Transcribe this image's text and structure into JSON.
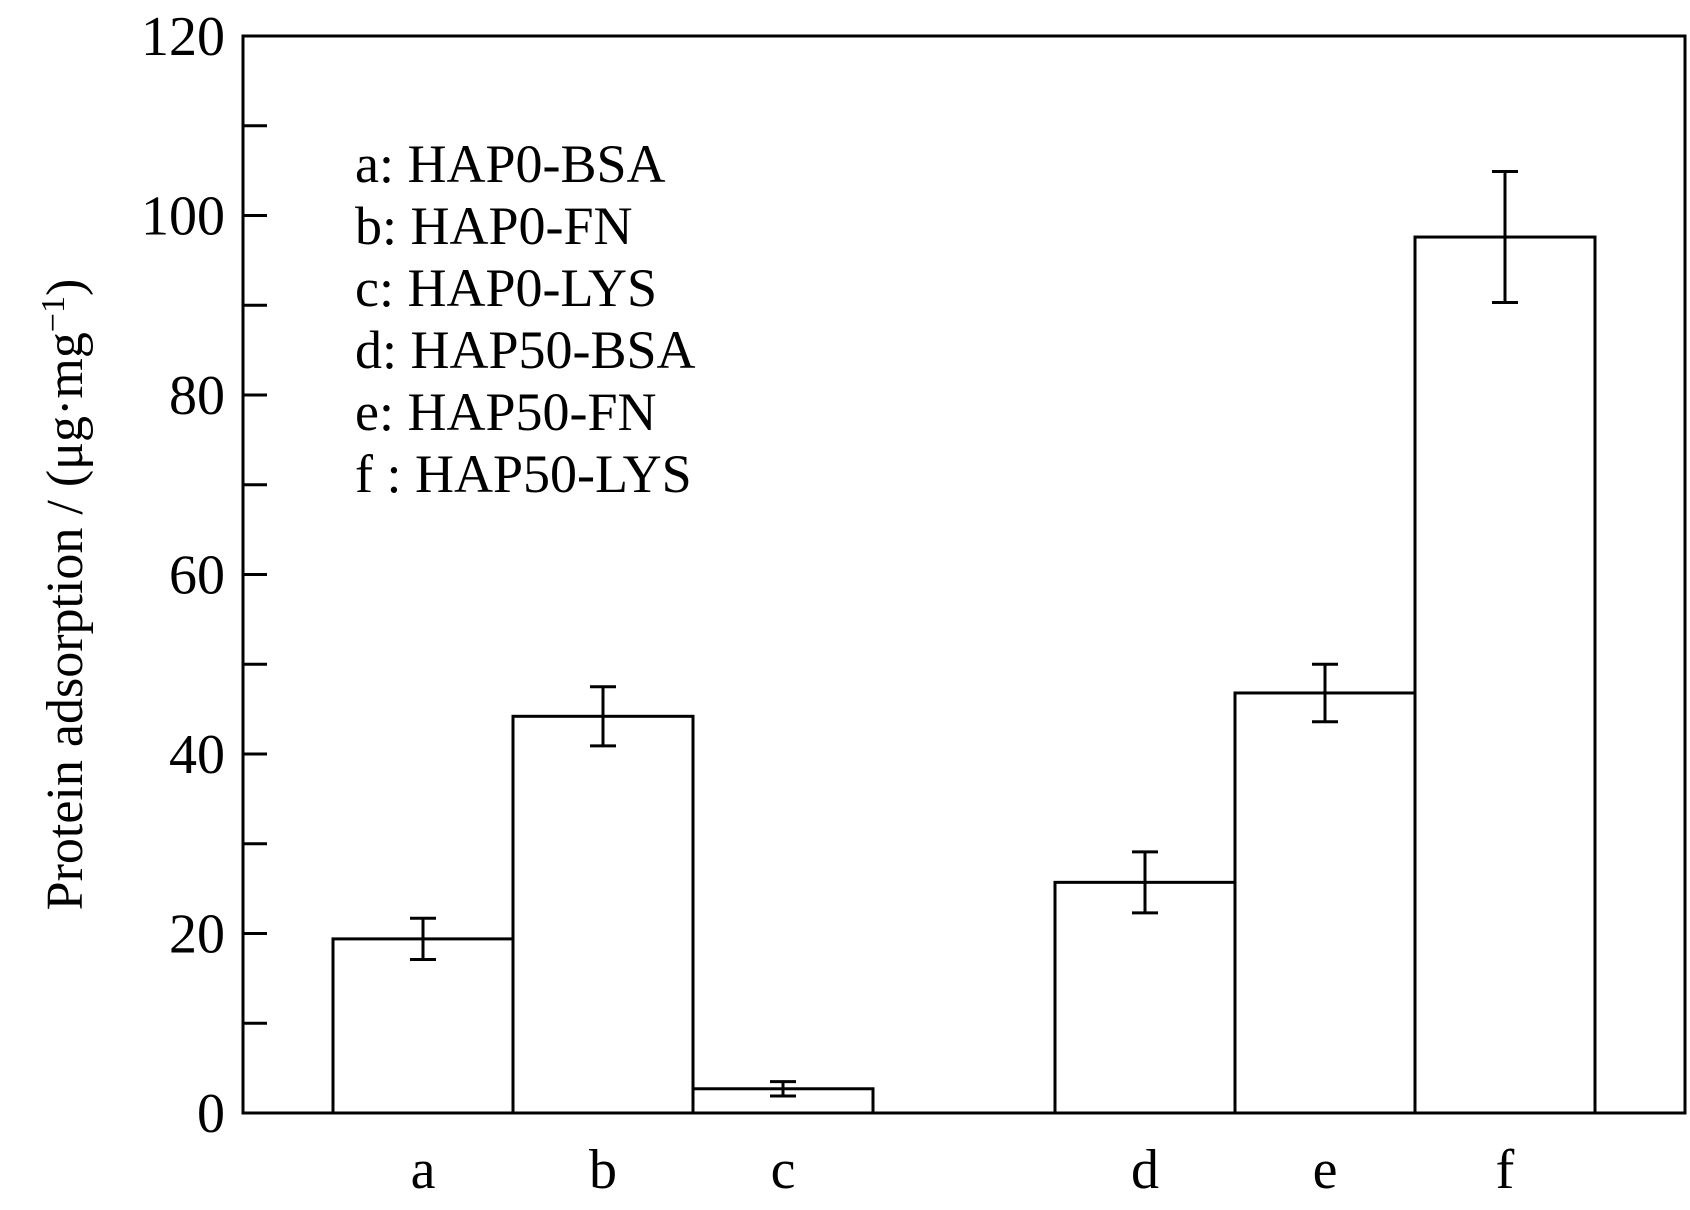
{
  "chart_data": {
    "type": "bar",
    "categories": [
      "a",
      "b",
      "c",
      "d",
      "e",
      "f"
    ],
    "values": [
      19.4,
      44.2,
      2.7,
      25.7,
      46.8,
      97.6
    ],
    "errors": [
      2.3,
      3.3,
      0.8,
      3.4,
      3.2,
      7.3
    ],
    "group_gap_after": 2,
    "ylim": [
      0,
      120
    ],
    "yticks": [
      0,
      20,
      40,
      60,
      80,
      100,
      120
    ],
    "yminor": [
      10,
      30,
      50,
      70,
      90,
      110
    ],
    "ylabel": "Protein adsorption / (μg·mg",
    "ylabel_sup": "−1",
    "ylabel_close": ")",
    "xlabel": "",
    "title": "",
    "legend": [
      "a: HAP0-BSA",
      "b: HAP0-FN",
      "c: HAP0-LYS",
      "d: HAP50-BSA",
      "e: HAP50-FN",
      "f : HAP50-LYS"
    ],
    "legend_position": "top-left",
    "bar_fill": "#ffffff",
    "bar_stroke": "#000000",
    "grid": false
  }
}
